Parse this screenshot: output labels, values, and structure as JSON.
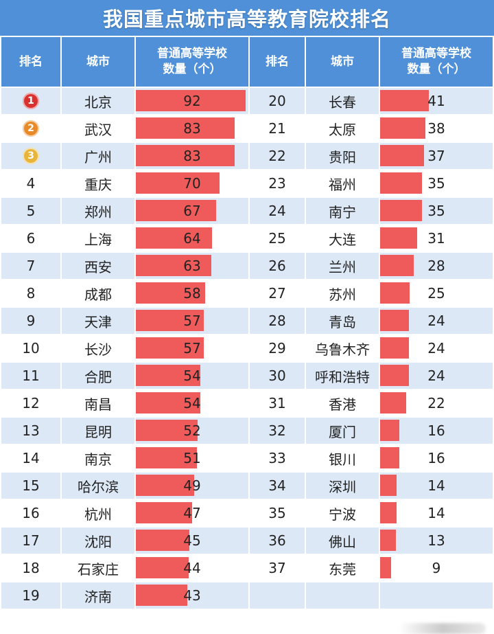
{
  "title": "我国重点城市高等教育院校排名",
  "headers": {
    "rank": "排名",
    "city": "城市",
    "count_line1": "普通高等学校",
    "count_line2": "数量（个）"
  },
  "colors": {
    "header": "#4f90d8",
    "bar": "#ef5b5b",
    "row_light": "#dce8f6",
    "gold": "#e8b53a",
    "silver": "#e88a2a",
    "first": "#d93030"
  },
  "chart_data": {
    "type": "bar",
    "title": "我国重点城市高等教育院校排名",
    "xlabel": "",
    "ylabel": "普通高等学校数量（个）",
    "ylim": [
      0,
      92
    ],
    "ranks": [
      "1",
      "2",
      "3",
      "4",
      "5",
      "6",
      "7",
      "8",
      "9",
      "10",
      "11",
      "12",
      "13",
      "14",
      "15",
      "16",
      "17",
      "18",
      "19",
      "20",
      "21",
      "22",
      "23",
      "24",
      "25",
      "26",
      "27",
      "28",
      "29",
      "30",
      "31",
      "32",
      "33",
      "34",
      "35",
      "36",
      "37"
    ],
    "categories": [
      "北京",
      "武汉",
      "广州",
      "重庆",
      "郑州",
      "上海",
      "西安",
      "成都",
      "天津",
      "长沙",
      "合肥",
      "南昌",
      "昆明",
      "南京",
      "哈尔滨",
      "杭州",
      "沈阳",
      "石家庄",
      "济南",
      "长春",
      "太原",
      "贵阳",
      "福州",
      "南宁",
      "大连",
      "兰州",
      "苏州",
      "青岛",
      "乌鲁木齐",
      "呼和浩特",
      "香港",
      "厦门",
      "银川",
      "深圳",
      "宁波",
      "佛山",
      "东莞"
    ],
    "values": [
      92,
      83,
      83,
      70,
      67,
      64,
      63,
      58,
      57,
      57,
      54,
      54,
      52,
      51,
      49,
      47,
      45,
      44,
      43,
      41,
      38,
      37,
      35,
      35,
      31,
      28,
      25,
      24,
      24,
      24,
      22,
      16,
      16,
      14,
      14,
      13,
      9
    ]
  }
}
